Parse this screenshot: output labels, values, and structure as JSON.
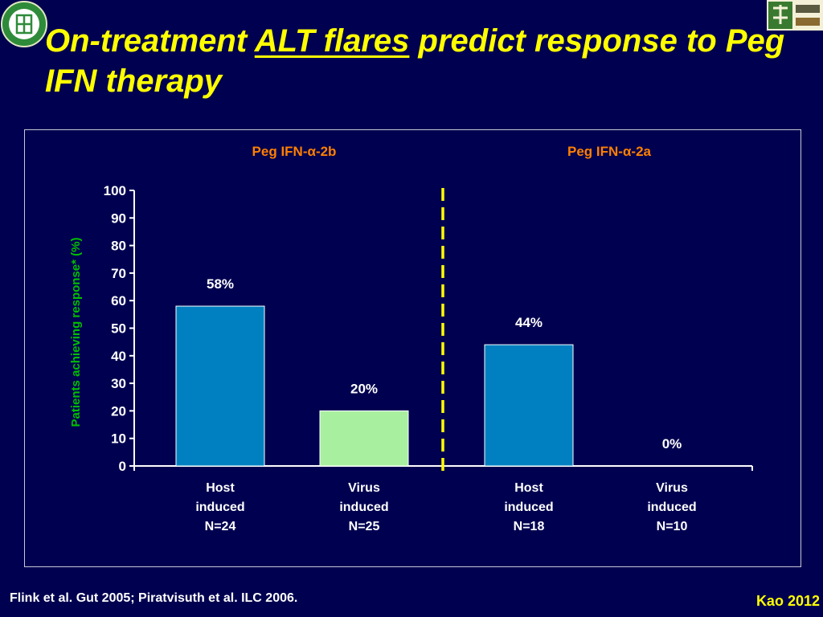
{
  "title": {
    "part1": "On-treatment ",
    "underlined": "ALT flares",
    "part2": " predict response to Peg IFN therapy"
  },
  "chart_data": {
    "type": "bar",
    "ylabel": "Patients achieving response* (%)",
    "ylim": [
      0,
      100
    ],
    "yticks": [
      "0",
      "10",
      "20",
      "30",
      "40",
      "50",
      "60",
      "70",
      "80",
      "90",
      "100"
    ],
    "groups": [
      {
        "label": "Peg IFN-α-2b"
      },
      {
        "label": "Peg IFN-α-2a"
      }
    ],
    "categories": [
      {
        "lines": [
          "Host",
          "induced",
          "N=24"
        ]
      },
      {
        "lines": [
          "Virus",
          "induced",
          "N=25"
        ]
      },
      {
        "lines": [
          "Host",
          "induced",
          "N=18"
        ]
      },
      {
        "lines": [
          "Virus",
          "induced",
          "N=10"
        ]
      }
    ],
    "values": [
      58,
      20,
      44,
      0
    ],
    "data_labels": [
      "58%",
      "20%",
      "44%",
      "0%"
    ],
    "colors": [
      "#0080c0",
      "#a8f0a0",
      "#0080c0",
      "#a8f0a0"
    ],
    "divider_color": "#ffff00",
    "ylabel_color": "#00c000",
    "group_label_color": "#ff8000"
  },
  "footer": {
    "citation": "Flink  et al. Gut 2005; Piratvisuth et al. ILC 2006.",
    "author": "Kao 2012"
  }
}
